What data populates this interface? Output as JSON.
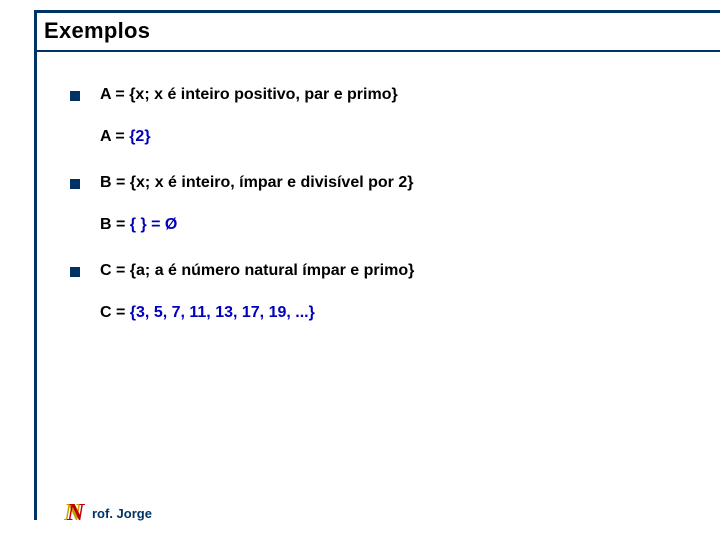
{
  "colors": {
    "rule": "#003366",
    "bullet": "#003266",
    "text": "#000000",
    "accent": "#0000bb",
    "logo_back": "#c6a300",
    "logo_front": "#c00000",
    "footer_text": "#003366",
    "background": "#ffffff"
  },
  "title": "Exemplos",
  "items": [
    {
      "main": "A = {x; x é inteiro positivo, par e primo}",
      "sub_prefix": "A = ",
      "sub_value": "{2}"
    },
    {
      "main": "B = {x; x é inteiro, ímpar e divisível por 2}",
      "sub_prefix": "B = ",
      "sub_value": "{ } = Ø"
    },
    {
      "main": "C = {a; a é número natural ímpar e primo}",
      "sub_prefix": "C = ",
      "sub_value": "{3, 5, 7, 11, 13, 17, 19, ...}"
    }
  ],
  "footer": {
    "logo_letter": "N",
    "author": "rof. Jorge"
  },
  "typography": {
    "title_fontsize": 22,
    "body_fontsize": 16,
    "footer_fontsize": 13,
    "font_family": "Verdana"
  }
}
